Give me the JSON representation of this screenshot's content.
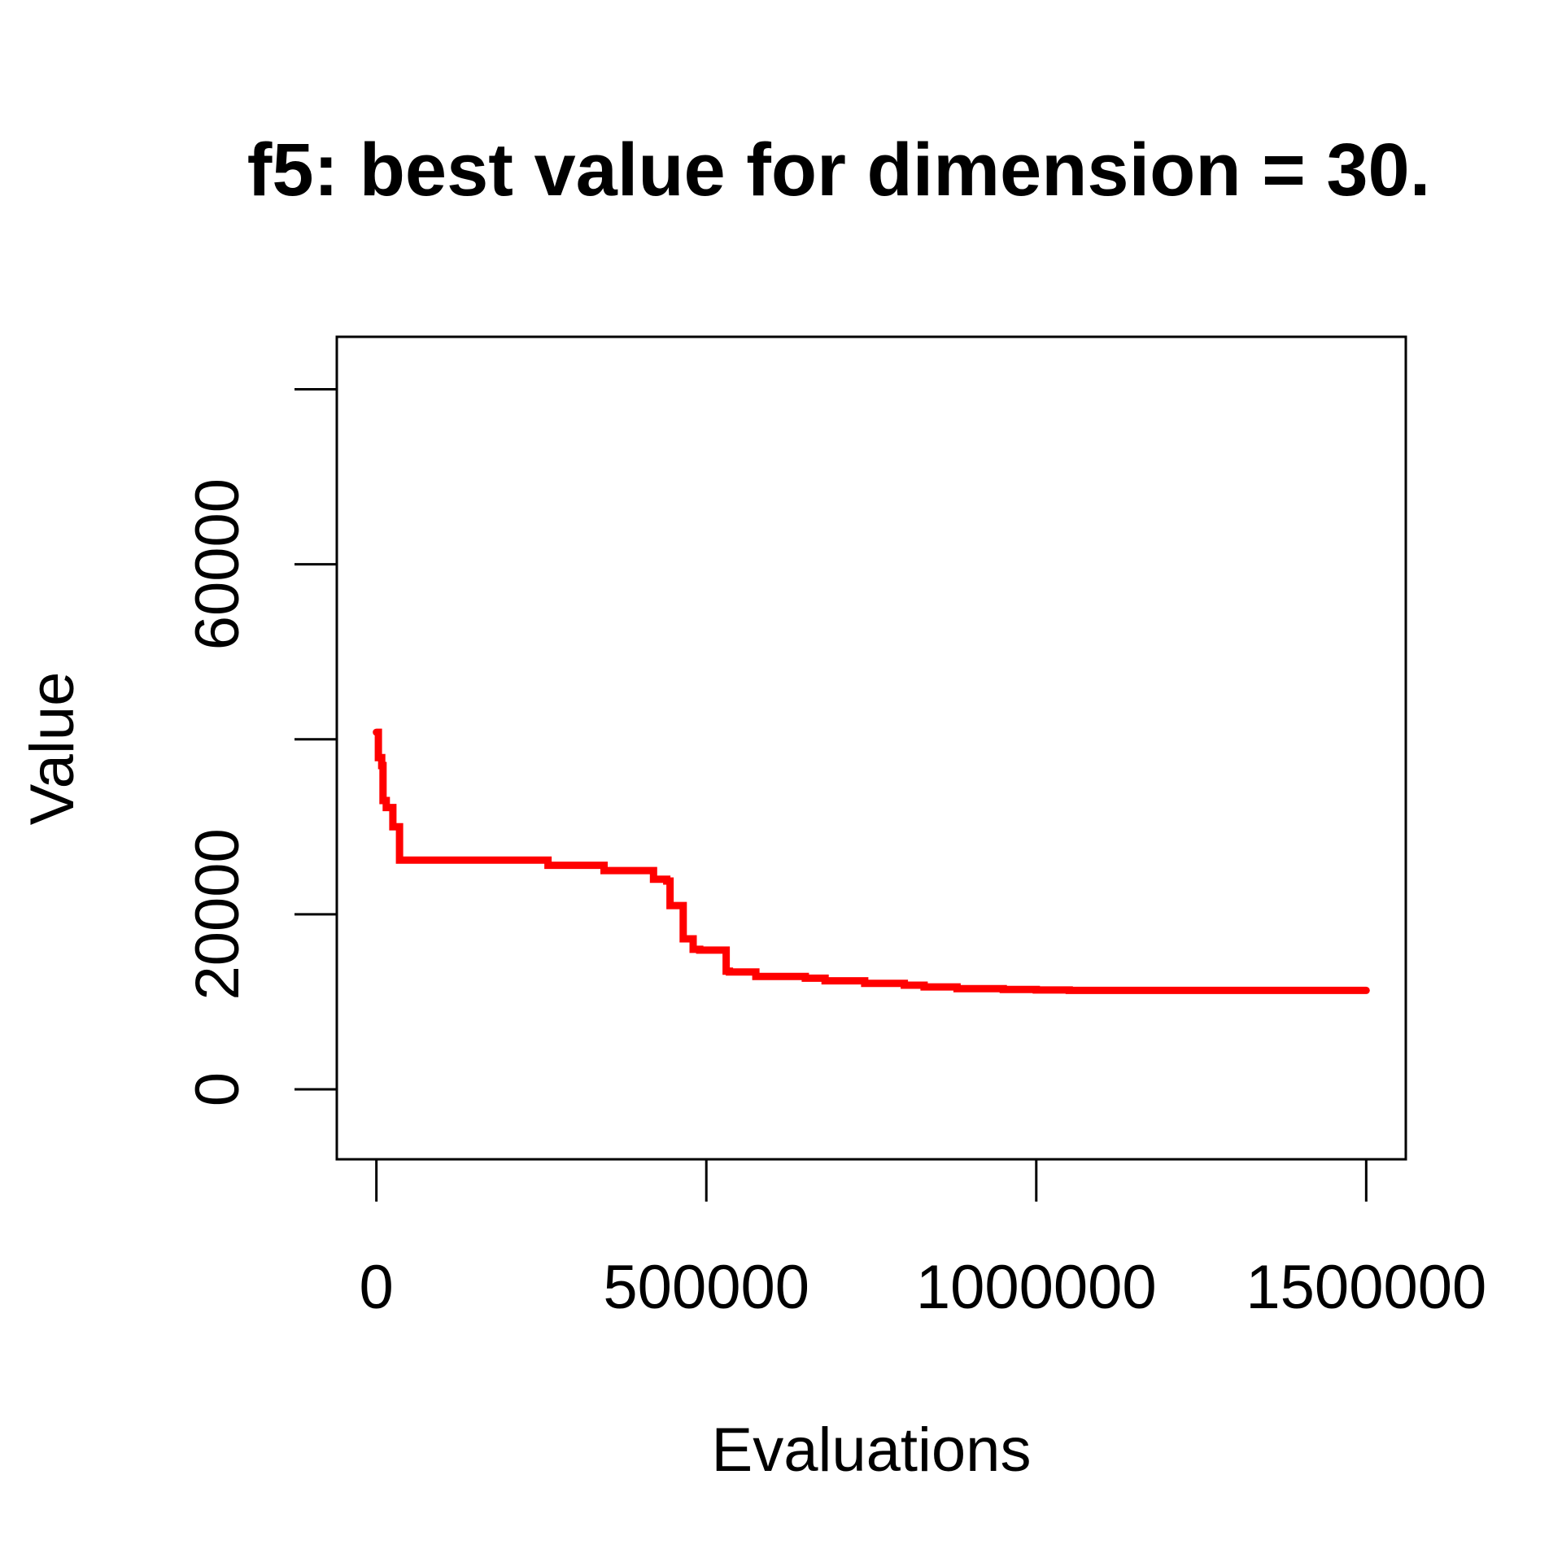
{
  "chart_data": {
    "type": "line",
    "title": "f5: best value for dimension = 30.",
    "xlabel": "Evaluations",
    "ylabel": "Value",
    "xlim": [
      -60000,
      1560000
    ],
    "ylim": [
      -8000,
      86000
    ],
    "x_ticks": [
      0,
      500000,
      1000000,
      1500000
    ],
    "x_tick_labels": [
      "0",
      "500000",
      "1000000",
      "1500000"
    ],
    "y_ticks": [
      0,
      20000,
      40000,
      60000,
      80000
    ],
    "y_tick_labels": [
      "0",
      "20000",
      "",
      "60000",
      ""
    ],
    "grid": false,
    "series": [
      {
        "color": "#ff0000",
        "step": true,
        "x": [
          0,
          3000,
          8000,
          10000,
          15000,
          25000,
          35000,
          50000,
          260000,
          345000,
          420000,
          440000,
          445000,
          465000,
          480000,
          490000,
          530000,
          535000,
          575000,
          585000,
          650000,
          680000,
          740000,
          800000,
          830000,
          880000,
          950000,
          1000000,
          1050000,
          1500000
        ],
        "y": [
          40800,
          37900,
          37000,
          33000,
          32200,
          30000,
          26200,
          26200,
          25600,
          25000,
          24000,
          23800,
          21000,
          17200,
          16000,
          15900,
          13500,
          13400,
          12900,
          12900,
          12700,
          12400,
          12100,
          11900,
          11700,
          11500,
          11400,
          11350,
          11300,
          11300
        ]
      }
    ]
  }
}
